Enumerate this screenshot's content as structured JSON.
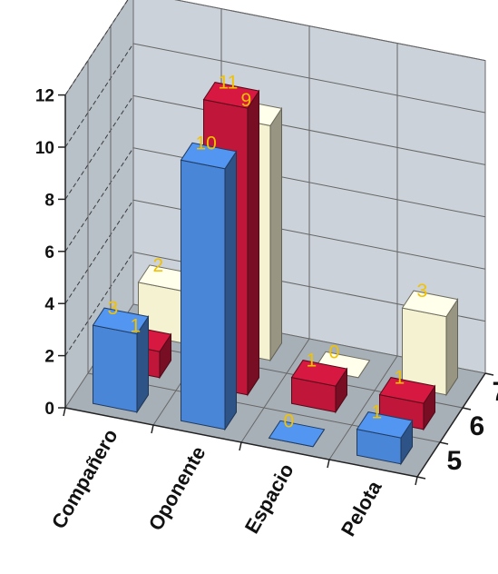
{
  "chart_data": {
    "type": "bar",
    "subtype": "3d-column",
    "categories": [
      "Compañero",
      "Oponente",
      "Espacio",
      "Pelota"
    ],
    "series": [
      {
        "name": "5",
        "values": [
          3,
          10,
          0,
          1
        ],
        "color": "#4a86d8"
      },
      {
        "name": "6",
        "values": [
          1,
          11,
          1,
          1
        ],
        "color": "#c0163a"
      },
      {
        "name": "7",
        "values": [
          2,
          9,
          0,
          3
        ],
        "color": "#f5f2d2"
      }
    ],
    "yticks": [
      "0",
      "2",
      "4",
      "6",
      "8",
      "10",
      "12"
    ],
    "ylim": [
      0,
      12
    ],
    "grid": true,
    "label_color": "#f2c200",
    "title": "",
    "xlabel": "",
    "ylabel": ""
  }
}
